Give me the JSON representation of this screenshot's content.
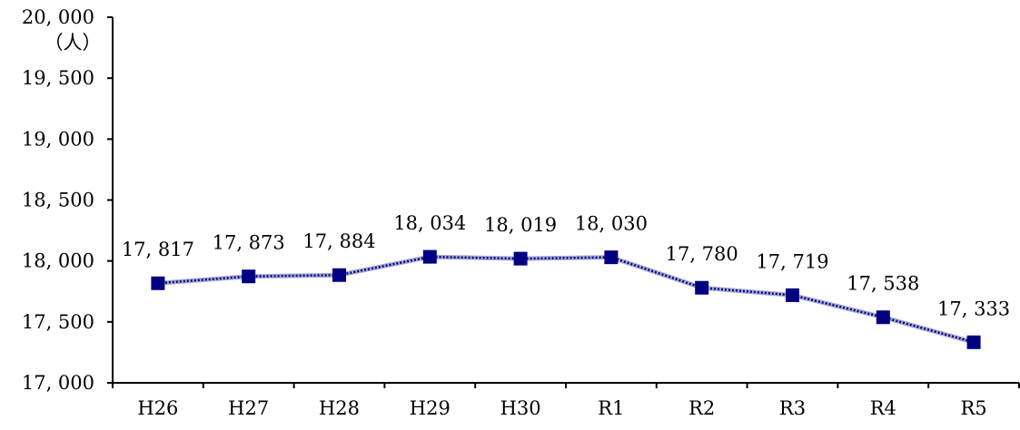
{
  "chart_data": {
    "type": "line",
    "title": "",
    "xlabel": "",
    "ylabel": "",
    "unit_label": "（人）",
    "categories": [
      "H26",
      "H27",
      "H28",
      "H29",
      "H30",
      "R1",
      "R2",
      "R3",
      "R4",
      "R5"
    ],
    "series": [
      {
        "values": [
          17817,
          17873,
          17884,
          18034,
          18019,
          18030,
          17780,
          17719,
          17538,
          17333
        ],
        "value_labels": [
          "17, 817",
          "17, 873",
          "17, 884",
          "18, 034",
          "18, 019",
          "18, 030",
          "17, 780",
          "17, 719",
          "17, 538",
          "17, 333"
        ],
        "color": "#000080",
        "marker": "square"
      }
    ],
    "ylim": [
      17000,
      20000
    ],
    "y_ticks": [
      17000,
      17500,
      18000,
      18500,
      19000,
      19500,
      20000
    ],
    "y_tick_labels": [
      "17, 000",
      "17, 500",
      "18, 000",
      "18, 500",
      "19, 000",
      "19, 500",
      "20, 000"
    ],
    "grid": false,
    "legend": "none"
  }
}
